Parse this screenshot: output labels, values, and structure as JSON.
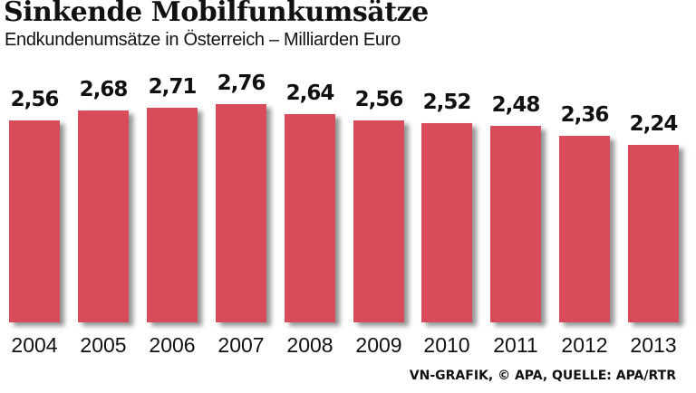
{
  "header": {
    "title": "Sinkende Mobilfunkumsätze",
    "subtitle": "Endkundenumsätze in Österreich – Milliarden Euro"
  },
  "footer": {
    "source": "VN-GRAFIK, © APA, QUELLE: APA/RTR"
  },
  "colors": {
    "bar": "#d84b5a"
  },
  "chart_data": {
    "type": "bar",
    "title": "Sinkende Mobilfunkumsätze",
    "subtitle": "Endkundenumsätze in Österreich – Milliarden Euro",
    "xlabel": "",
    "ylabel": "Milliarden Euro",
    "categories": [
      "2004",
      "2005",
      "2006",
      "2007",
      "2008",
      "2009",
      "2010",
      "2011",
      "2012",
      "2013"
    ],
    "values": [
      2.56,
      2.68,
      2.71,
      2.76,
      2.64,
      2.56,
      2.52,
      2.48,
      2.36,
      2.24
    ],
    "value_labels": [
      "2,56",
      "2,68",
      "2,71",
      "2,76",
      "2,64",
      "2,56",
      "2,52",
      "2,48",
      "2,36",
      "2,24"
    ],
    "ylim": [
      0,
      2.8
    ],
    "grid": false,
    "legend": null,
    "source": "VN-GRAFIK, © APA, QUELLE: APA/RTR"
  }
}
